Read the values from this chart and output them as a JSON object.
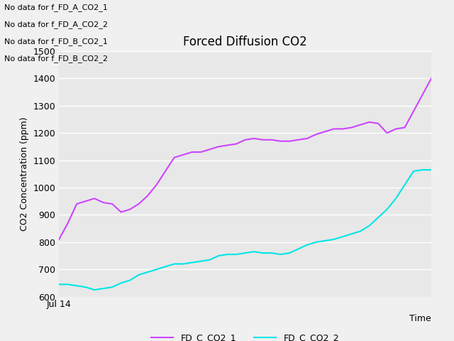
{
  "title": "Forced Diffusion CO2",
  "xlabel": "Time",
  "ylabel": "CO2 Concentration (ppm)",
  "ylim": [
    600,
    1500
  ],
  "yticks": [
    600,
    700,
    800,
    900,
    1000,
    1100,
    1200,
    1300,
    1400,
    1500
  ],
  "x_label_start": "Jul 14",
  "fig_bg": "#f0f0f0",
  "axes_bg": "#e8e8e8",
  "no_data_messages": [
    "No data for f_FD_A_CO2_1",
    "No data for f_FD_A_CO2_2",
    "No data for f_FD_B_CO2_1",
    "No data for f_FD_B_CO2_2"
  ],
  "line1_color": "#cc44ff",
  "line2_color": "#00e5e5",
  "line1_label": "FD_C_CO2_1",
  "line2_label": "FD_C_CO2_2",
  "line1_y": [
    810,
    870,
    940,
    950,
    960,
    945,
    940,
    910,
    920,
    940,
    970,
    1010,
    1060,
    1110,
    1120,
    1130,
    1130,
    1140,
    1150,
    1155,
    1160,
    1175,
    1180,
    1175,
    1175,
    1170,
    1170,
    1175,
    1180,
    1195,
    1205,
    1215,
    1215,
    1220,
    1230,
    1240,
    1235,
    1200,
    1215,
    1220,
    1280,
    1340,
    1400
  ],
  "line2_y": [
    645,
    645,
    640,
    635,
    625,
    630,
    635,
    650,
    660,
    680,
    690,
    700,
    710,
    720,
    720,
    725,
    730,
    735,
    750,
    755,
    755,
    760,
    765,
    760,
    760,
    755,
    760,
    775,
    790,
    800,
    805,
    810,
    820,
    830,
    840,
    860,
    890,
    920,
    960,
    1010,
    1060,
    1065,
    1065
  ],
  "msg_fontsize": 8,
  "title_fontsize": 12,
  "tick_fontsize": 9,
  "ylabel_fontsize": 9,
  "xlabel_fontsize": 9,
  "legend_fontsize": 9
}
